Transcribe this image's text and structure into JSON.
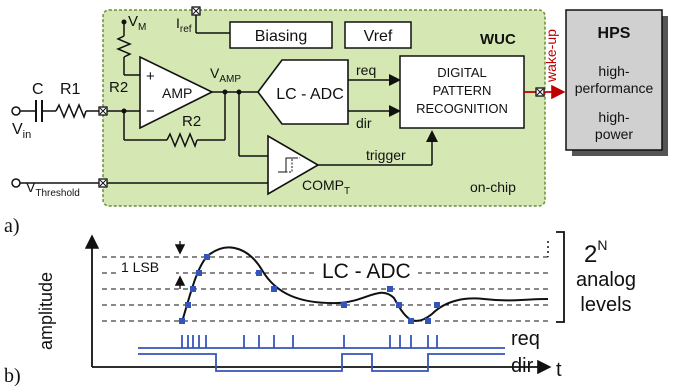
{
  "panel_a": {
    "tag": "a)",
    "chip_name": "WUC",
    "on_chip": "on-chip",
    "input": {
      "c": "C",
      "r1": "R1",
      "v": "V",
      "v_sub": "in"
    },
    "vm": {
      "v": "V",
      "sub": "M"
    },
    "iref": {
      "i": "I",
      "sub": "ref"
    },
    "biasing": "Biasing",
    "vref": "Vref",
    "r2_top": "R2",
    "r2_bottom": "R2",
    "amp": "AMP",
    "plus": "+",
    "minus": "−",
    "vamp": {
      "v": "V",
      "sub": "AMP"
    },
    "adc": "LC - ADC",
    "req": "req",
    "dir": "dir",
    "dpr": [
      "DIGITAL",
      "PATTERN",
      "RECOGNITION"
    ],
    "trigger": "trigger",
    "comp": {
      "c": "COMP",
      "sub": "T"
    },
    "vth": {
      "v": "V",
      "sub": "Threshold"
    },
    "wakeup": "wake-up",
    "hps": {
      "title": "HPS",
      "l1": "high-",
      "l2": "performance",
      "l3": "high-",
      "l4": "power"
    },
    "colors": {
      "chip_fill": "#d5e8b4",
      "chip_stroke": "#6b8e3a",
      "hps_fill": "#d0d0d0",
      "wakeup": "#c00000",
      "dot": "#3355bb"
    }
  },
  "panel_b": {
    "tag": "b)",
    "ylabel": "amplitude",
    "xlabel": "t",
    "lsb": "1 LSB",
    "adc": "LC - ADC",
    "levels": {
      "base": "2",
      "exp": "N",
      "l2": "analog",
      "l3": "levels"
    },
    "req": "req",
    "dir": "dir"
  }
}
